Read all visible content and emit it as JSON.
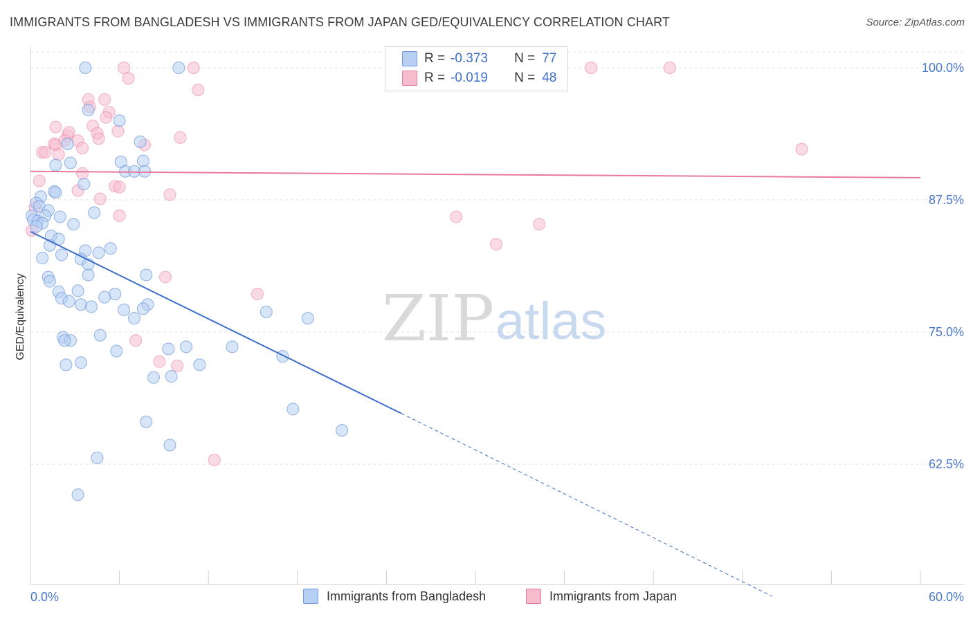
{
  "title": "IMMIGRANTS FROM BANGLADESH VS IMMIGRANTS FROM JAPAN GED/EQUIVALENCY CORRELATION CHART",
  "source": "Source: ZipAtlas.com",
  "watermark": {
    "zip": "ZIP",
    "atlas": "atlas"
  },
  "legend": {
    "r_label": "R =",
    "n_label": "N =",
    "series": [
      {
        "r": "-0.373",
        "n": "77"
      },
      {
        "r": "-0.019",
        "n": "48"
      }
    ]
  },
  "colors": {
    "blue": "#3d6ec9",
    "blue_fill": "#b7cff3",
    "pink": "#e8799b",
    "pink_fill": "#f6bccd",
    "axis_label": "#4a78c8"
  },
  "chart_data": {
    "type": "scatter",
    "title": "IMMIGRANTS FROM BANGLADESH VS IMMIGRANTS FROM JAPAN GED/EQUIVALENCY CORRELATION CHART",
    "xlabel": "",
    "ylabel": "GED/Equivalency",
    "xlim": [
      0,
      60
    ],
    "ylim": [
      50,
      101.5
    ],
    "x_tick_labels": [
      "0.0%",
      "60.0%"
    ],
    "y_ticks": [
      62.5,
      75.0,
      87.5,
      100.0
    ],
    "y_tick_labels": [
      "62.5%",
      "75.0%",
      "87.5%",
      "100.0%"
    ],
    "grid": true,
    "legend_position": "top-center",
    "series": [
      {
        "name": "Immigrants from Bangladesh",
        "color": "#3d6ec9",
        "trend": {
          "x0": 0,
          "y0": 84.5,
          "x1": 25,
          "y1": 67.3,
          "dashed_to_x": 50,
          "dashed_to_y": 50
        },
        "points": [
          [
            3.7,
            100
          ],
          [
            10,
            100
          ],
          [
            3.9,
            96
          ],
          [
            6,
            95
          ],
          [
            7.4,
            93
          ],
          [
            2.5,
            92.8
          ],
          [
            6.1,
            91.1
          ],
          [
            7.6,
            91.2
          ],
          [
            2.7,
            91
          ],
          [
            1.7,
            90.8
          ],
          [
            6.4,
            90.2
          ],
          [
            7.0,
            90.2
          ],
          [
            7.7,
            90.2
          ],
          [
            3.6,
            89
          ],
          [
            1.6,
            88.3
          ],
          [
            1.7,
            88.2
          ],
          [
            0.7,
            87.8
          ],
          [
            0.4,
            87.2
          ],
          [
            0.6,
            86.9
          ],
          [
            1.2,
            86.5
          ],
          [
            0.1,
            86.0
          ],
          [
            0.2,
            85.6
          ],
          [
            0.5,
            85.5
          ],
          [
            1.0,
            86.0
          ],
          [
            2.0,
            85.9
          ],
          [
            0.8,
            85.3
          ],
          [
            4.3,
            86.3
          ],
          [
            2.9,
            85.2
          ],
          [
            0.4,
            85.0
          ],
          [
            1.4,
            84.1
          ],
          [
            1.9,
            83.8
          ],
          [
            1.3,
            83.2
          ],
          [
            5.4,
            82.9
          ],
          [
            3.7,
            82.7
          ],
          [
            4.6,
            82.5
          ],
          [
            2.1,
            82.3
          ],
          [
            0.8,
            82.0
          ],
          [
            3.4,
            81.9
          ],
          [
            3.9,
            81.4
          ],
          [
            3.9,
            80.4
          ],
          [
            1.2,
            80.2
          ],
          [
            1.3,
            79.8
          ],
          [
            7.8,
            80.4
          ],
          [
            1.9,
            78.8
          ],
          [
            3.2,
            78.9
          ],
          [
            5.7,
            78.6
          ],
          [
            5.0,
            78.3
          ],
          [
            2.1,
            78.2
          ],
          [
            2.6,
            77.9
          ],
          [
            3.4,
            77.6
          ],
          [
            4.1,
            77.4
          ],
          [
            7.9,
            77.6
          ],
          [
            6.3,
            77.1
          ],
          [
            7.6,
            77.2
          ],
          [
            15.9,
            76.9
          ],
          [
            18.7,
            76.3
          ],
          [
            7.0,
            76.3
          ],
          [
            4.7,
            74.7
          ],
          [
            2.2,
            74.5
          ],
          [
            2.7,
            74.2
          ],
          [
            2.3,
            74.2
          ],
          [
            10.5,
            73.6
          ],
          [
            9.3,
            73.4
          ],
          [
            5.8,
            73.2
          ],
          [
            17.0,
            72.7
          ],
          [
            3.4,
            72.1
          ],
          [
            2.4,
            71.9
          ],
          [
            11.4,
            71.9
          ],
          [
            8.3,
            70.7
          ],
          [
            17.7,
            67.7
          ],
          [
            7.8,
            66.5
          ],
          [
            21.0,
            65.7
          ],
          [
            9.4,
            64.3
          ],
          [
            4.5,
            63.1
          ],
          [
            3.2,
            59.6
          ],
          [
            13.6,
            73.6
          ],
          [
            9.5,
            70.8
          ]
        ]
      },
      {
        "name": "Immigrants from Japan",
        "color": "#e8799b",
        "trend": {
          "x0": 0,
          "y0": 90.2,
          "x1": 60,
          "y1": 89.6
        },
        "points": [
          [
            6.3,
            100
          ],
          [
            11.0,
            100
          ],
          [
            37.8,
            100
          ],
          [
            43.1,
            100
          ],
          [
            6.6,
            99.0
          ],
          [
            11.3,
            97.9
          ],
          [
            3.9,
            97.0
          ],
          [
            4.0,
            96.3
          ],
          [
            5.0,
            97.0
          ],
          [
            5.3,
            95.8
          ],
          [
            5.1,
            95.3
          ],
          [
            4.2,
            94.5
          ],
          [
            5.9,
            94.0
          ],
          [
            1.7,
            94.4
          ],
          [
            2.5,
            93.6
          ],
          [
            2.6,
            93.9
          ],
          [
            4.5,
            93.8
          ],
          [
            4.6,
            93.3
          ],
          [
            10.1,
            93.4
          ],
          [
            2.3,
            93.1
          ],
          [
            1.6,
            92.8
          ],
          [
            1.7,
            92.7
          ],
          [
            3.2,
            93.1
          ],
          [
            3.5,
            92.4
          ],
          [
            7.7,
            92.7
          ],
          [
            0.8,
            92.0
          ],
          [
            1.0,
            92.0
          ],
          [
            1.9,
            91.8
          ],
          [
            52.0,
            92.3
          ],
          [
            3.5,
            90.0
          ],
          [
            0.6,
            89.3
          ],
          [
            5.7,
            88.8
          ],
          [
            6.0,
            88.7
          ],
          [
            3.2,
            88.4
          ],
          [
            9.4,
            88.0
          ],
          [
            4.7,
            87.6
          ],
          [
            0.3,
            86.8
          ],
          [
            6.0,
            86.0
          ],
          [
            28.7,
            85.9
          ],
          [
            34.3,
            85.2
          ],
          [
            31.4,
            83.3
          ],
          [
            9.1,
            80.2
          ],
          [
            15.3,
            78.6
          ],
          [
            7.1,
            74.2
          ],
          [
            8.7,
            72.2
          ],
          [
            9.9,
            71.8
          ],
          [
            12.4,
            62.9
          ],
          [
            0.1,
            84.6
          ]
        ]
      }
    ]
  }
}
